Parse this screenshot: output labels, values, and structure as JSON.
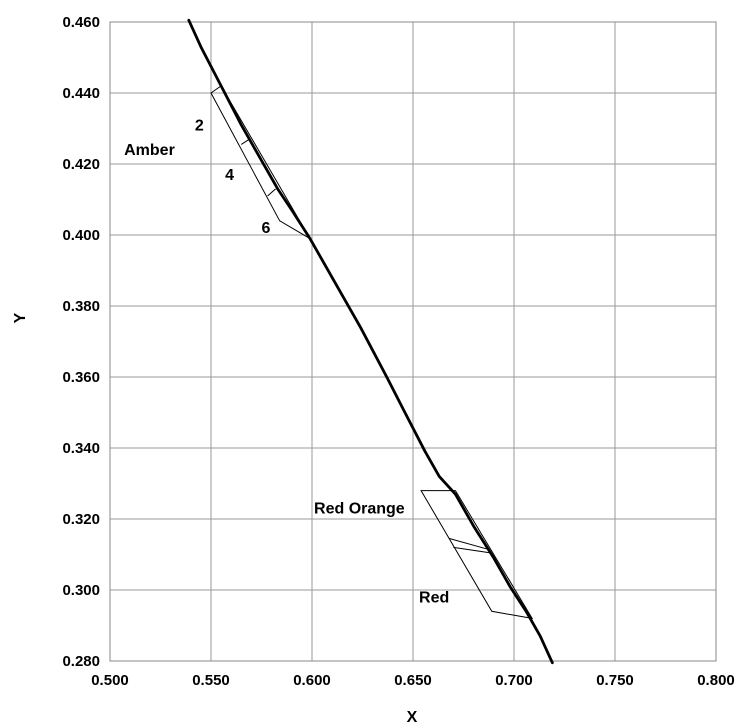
{
  "chart_data": {
    "type": "line",
    "title": "",
    "xlabel": "X",
    "ylabel": "Y",
    "xlim": [
      0.5,
      0.8
    ],
    "ylim": [
      0.28,
      0.46
    ],
    "x_ticks": [
      "0.500",
      "0.550",
      "0.600",
      "0.650",
      "0.700",
      "0.750",
      "0.800"
    ],
    "y_ticks": [
      "0.280",
      "0.300",
      "0.320",
      "0.340",
      "0.360",
      "0.380",
      "0.400",
      "0.420",
      "0.440",
      "0.460"
    ],
    "grid": true,
    "legend": "none",
    "series": [
      {
        "points": [
          [
            0.539,
            0.4605
          ],
          [
            0.545,
            0.453
          ],
          [
            0.555,
            0.442
          ],
          [
            0.565,
            0.431
          ],
          [
            0.574,
            0.422
          ],
          [
            0.583,
            0.413
          ],
          [
            0.59,
            0.407
          ],
          [
            0.599,
            0.399
          ],
          [
            0.611,
            0.387
          ],
          [
            0.624,
            0.374
          ],
          [
            0.637,
            0.36
          ],
          [
            0.646,
            0.35
          ],
          [
            0.656,
            0.339
          ],
          [
            0.663,
            0.332
          ],
          [
            0.671,
            0.327
          ],
          [
            0.68,
            0.318
          ],
          [
            0.69,
            0.309
          ],
          [
            0.698,
            0.301
          ],
          [
            0.706,
            0.294
          ],
          [
            0.713,
            0.287
          ],
          [
            0.719,
            0.2795
          ]
        ]
      }
    ],
    "regions": [
      {
        "polygon": [
          [
            0.555,
            0.442
          ],
          [
            0.55,
            0.44
          ],
          [
            0.584,
            0.404
          ],
          [
            0.599,
            0.399
          ]
        ]
      },
      {
        "polygon": [
          [
            0.654,
            0.328
          ],
          [
            0.671,
            0.328
          ],
          [
            0.709,
            0.292
          ],
          [
            0.689,
            0.294
          ]
        ]
      }
    ],
    "segments": [
      [
        [
          0.565,
          0.4255
        ],
        [
          0.569,
          0.427
        ]
      ],
      [
        [
          0.578,
          0.411
        ],
        [
          0.582,
          0.413
        ]
      ],
      [
        [
          0.668,
          0.3145
        ],
        [
          0.687,
          0.3115
        ]
      ],
      [
        [
          0.67,
          0.312
        ],
        [
          0.688,
          0.3105
        ]
      ]
    ],
    "annotations": [
      {
        "text": "Amber",
        "x": 0.507,
        "y": 0.4225
      },
      {
        "text": "2",
        "x": 0.542,
        "y": 0.4295
      },
      {
        "text": "4",
        "x": 0.557,
        "y": 0.4155
      },
      {
        "text": "6",
        "x": 0.575,
        "y": 0.4005
      },
      {
        "text": "Red Orange",
        "x": 0.601,
        "y": 0.3215
      },
      {
        "text": "Red",
        "x": 0.653,
        "y": 0.2965
      }
    ]
  }
}
